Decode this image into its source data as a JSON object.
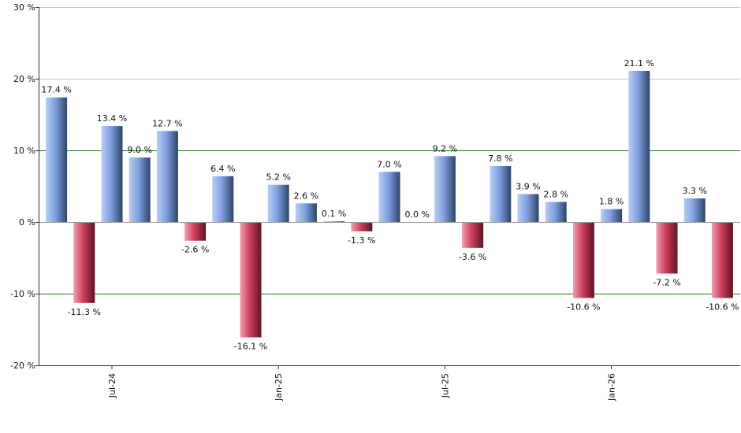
{
  "chart_data": {
    "type": "bar",
    "ylim": [
      -20,
      30
    ],
    "y_ticks": [
      30,
      20,
      10,
      0,
      -10,
      -20
    ],
    "y_tick_labels": [
      "30 %",
      "20 %",
      "10 %",
      "0 %",
      "-10 %",
      "-20 %"
    ],
    "x_tick_labels": [
      {
        "label": "Jul-24",
        "index": 2
      },
      {
        "label": "Jan-25",
        "index": 8
      },
      {
        "label": "Jul-25",
        "index": 14
      },
      {
        "label": "Jan-26",
        "index": 20
      }
    ],
    "values": [
      17.4,
      -11.3,
      13.4,
      9.0,
      12.7,
      -2.6,
      6.4,
      -16.1,
      5.2,
      2.6,
      0.1,
      -1.3,
      7.0,
      0.0,
      9.2,
      -3.6,
      7.8,
      3.9,
      2.8,
      -10.6,
      1.8,
      21.1,
      -7.2,
      3.3,
      -10.6
    ],
    "value_labels": [
      "17.4 %",
      "-11.3 %",
      "13.4 %",
      "9.0 %",
      "12.7 %",
      "-2.6 %",
      "6.4 %",
      "-16.1 %",
      "5.2 %",
      "2.6 %",
      "0.1 %",
      "-1.3 %",
      "7.0 %",
      "0.0 %",
      "9.2 %",
      "-3.6 %",
      "7.8 %",
      "3.9 %",
      "2.8 %",
      "-10.6 %",
      "1.8 %",
      "21.1 %",
      "-7.2 %",
      "3.3 %",
      "-10.6 %"
    ],
    "reference_lines": [
      10,
      -10
    ],
    "grid": true,
    "legend": "none",
    "colors": {
      "positive": "#7a9ee0",
      "negative": "#c8405a",
      "reference_line": "#1a7a1a",
      "grid": "#c8c8c8",
      "axis": "#333333"
    }
  }
}
